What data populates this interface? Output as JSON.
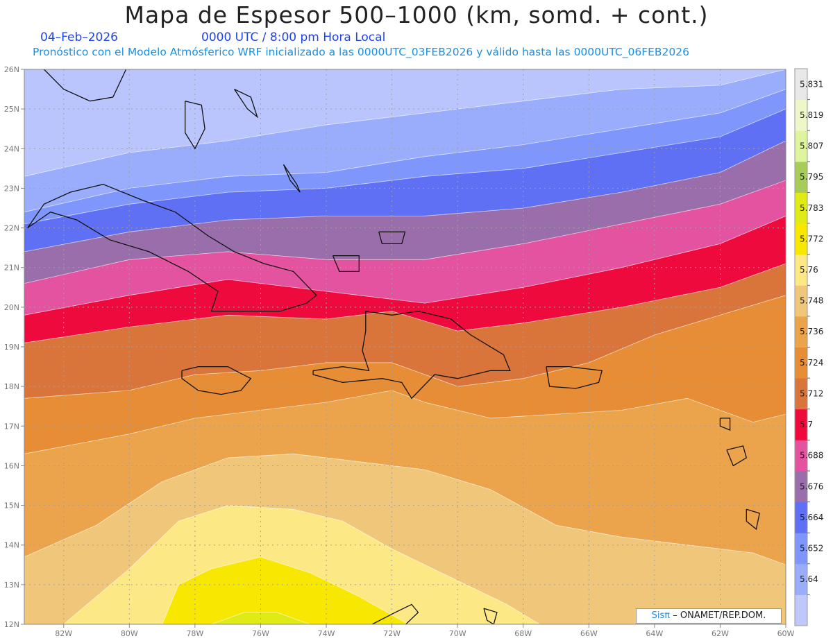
{
  "header": {
    "title": "Mapa de Espesor 500–1000 (km, somd. + cont.)",
    "date": "04–Feb–2026",
    "time": "0000 UTC / 8:00 pm Hora Local",
    "model_line": "Pronóstico con el Modelo Atmósferico WRF inicializado a las 0000UTC_03FEB2026 y válido hasta las  0000UTC_06FEB2026"
  },
  "credit": {
    "brand": "Sisπ",
    "text": "– ONAMET/REP.DOM."
  },
  "map": {
    "lon_range": [
      -83.2,
      -60
    ],
    "lat_range": [
      12,
      26
    ],
    "lon_ticks": [
      "82W",
      "80W",
      "78W",
      "76W",
      "74W",
      "72W",
      "70W",
      "68W",
      "66W",
      "64W",
      "62W",
      "60W"
    ],
    "lat_ticks": [
      "12N",
      "13N",
      "14N",
      "15N",
      "16N",
      "17N",
      "18N",
      "19N",
      "20N",
      "21N",
      "22N",
      "23N",
      "24N",
      "25N",
      "26N"
    ],
    "grid": true
  },
  "colorbar": {
    "labels": [
      "5.64",
      "5.652",
      "5.664",
      "5.676",
      "5.688",
      "5.7",
      "5.712",
      "5.724",
      "5.736",
      "5.748",
      "5.76",
      "5.772",
      "5.783",
      "5.795",
      "5.807",
      "5.819",
      "5.831"
    ],
    "colors": [
      "#c0c8fb",
      "#9aadfd",
      "#7f96fc",
      "#6070f4",
      "#9a6eaa",
      "#e453a0",
      "#ef0a3e",
      "#d9743a",
      "#e68d36",
      "#eba44b",
      "#f0c77a",
      "#fce884",
      "#f8e700",
      "#e0ea14",
      "#a8cc58",
      "#def59e",
      "#eef7c9",
      "#e8e8e8"
    ]
  },
  "bands": [
    {
      "color": "#b9c5fc",
      "top": [
        [
          -83.2,
          26
        ],
        [
          -60,
          26
        ]
      ]
    },
    {
      "color": "#9aadfd",
      "top": [
        [
          -83.2,
          23.3
        ],
        [
          -80,
          23.9
        ],
        [
          -77,
          24.2
        ],
        [
          -74,
          24.6
        ],
        [
          -71,
          24.9
        ],
        [
          -68,
          25.2
        ],
        [
          -65,
          25.5
        ],
        [
          -62,
          25.6
        ],
        [
          -60,
          26
        ]
      ]
    },
    {
      "color": "#7f96fc",
      "top": [
        [
          -83.2,
          22.4
        ],
        [
          -80,
          23.0
        ],
        [
          -77,
          23.3
        ],
        [
          -74,
          23.4
        ],
        [
          -71,
          23.8
        ],
        [
          -68,
          24.1
        ],
        [
          -65,
          24.5
        ],
        [
          -62,
          24.9
        ],
        [
          -60,
          25.5
        ]
      ]
    },
    {
      "color": "#6070f4",
      "top": [
        [
          -83.2,
          22.1
        ],
        [
          -80,
          22.6
        ],
        [
          -77,
          22.9
        ],
        [
          -74,
          23.0
        ],
        [
          -71,
          23.3
        ],
        [
          -68,
          23.5
        ],
        [
          -65,
          23.9
        ],
        [
          -62,
          24.3
        ],
        [
          -60,
          25.0
        ]
      ]
    },
    {
      "color": "#9a6eaa",
      "top": [
        [
          -83.2,
          21.4
        ],
        [
          -80,
          21.9
        ],
        [
          -77,
          22.2
        ],
        [
          -74,
          22.3
        ],
        [
          -71,
          22.3
        ],
        [
          -68,
          22.5
        ],
        [
          -65,
          22.9
        ],
        [
          -62,
          23.4
        ],
        [
          -60,
          24.2
        ]
      ]
    },
    {
      "color": "#e453a0",
      "top": [
        [
          -83.2,
          20.6
        ],
        [
          -80,
          21.2
        ],
        [
          -77,
          21.4
        ],
        [
          -74,
          21.2
        ],
        [
          -71,
          21.2
        ],
        [
          -68,
          21.6
        ],
        [
          -65,
          22.1
        ],
        [
          -62,
          22.6
        ],
        [
          -60,
          23.2
        ]
      ]
    },
    {
      "color": "#ef0a3e",
      "top": [
        [
          -83.2,
          19.8
        ],
        [
          -80,
          20.3
        ],
        [
          -77,
          20.7
        ],
        [
          -74,
          20.4
        ],
        [
          -71,
          20.1
        ],
        [
          -68,
          20.5
        ],
        [
          -65,
          21.0
        ],
        [
          -62,
          21.6
        ],
        [
          -60,
          22.3
        ]
      ]
    },
    {
      "color": "#d9743a",
      "top": [
        [
          -83.2,
          19.1
        ],
        [
          -80,
          19.5
        ],
        [
          -77,
          19.8
        ],
        [
          -74,
          19.7
        ],
        [
          -72,
          19.9
        ],
        [
          -70,
          19.4
        ],
        [
          -68,
          19.6
        ],
        [
          -65,
          20.0
        ],
        [
          -62,
          20.5
        ],
        [
          -60,
          21.1
        ]
      ]
    },
    {
      "color": "#e68d36",
      "top": [
        [
          -83.2,
          17.7
        ],
        [
          -80,
          17.9
        ],
        [
          -78,
          18.3
        ],
        [
          -76,
          18.4
        ],
        [
          -74,
          18.6
        ],
        [
          -72,
          18.6
        ],
        [
          -70,
          18.0
        ],
        [
          -68,
          18.2
        ],
        [
          -66,
          18.6
        ],
        [
          -64,
          19.3
        ],
        [
          -62,
          19.8
        ],
        [
          -60,
          20.3
        ]
      ]
    },
    {
      "color": "#eba44b",
      "top": [
        [
          -83.2,
          16.3
        ],
        [
          -80,
          16.8
        ],
        [
          -78,
          17.2
        ],
        [
          -76,
          17.4
        ],
        [
          -74,
          17.6
        ],
        [
          -72,
          17.9
        ],
        [
          -71,
          17.6
        ],
        [
          -69,
          17.2
        ],
        [
          -67,
          17.3
        ],
        [
          -65,
          17.4
        ],
        [
          -63,
          17.7
        ],
        [
          -61,
          17.1
        ],
        [
          -60,
          17.3
        ]
      ]
    },
    {
      "color": "#f0c77a",
      "top": [
        [
          -83.2,
          13.7
        ],
        [
          -81,
          14.5
        ],
        [
          -79,
          15.6
        ],
        [
          -77,
          16.2
        ],
        [
          -75,
          16.3
        ],
        [
          -73,
          16.1
        ],
        [
          -71,
          15.9
        ],
        [
          -69,
          15.4
        ],
        [
          -67,
          14.5
        ],
        [
          -65,
          14.2
        ],
        [
          -63,
          14.0
        ],
        [
          -61,
          13.8
        ],
        [
          -60,
          13.5
        ]
      ]
    },
    {
      "color": "#fce884",
      "top": [
        [
          -82,
          12.0
        ],
        [
          -80,
          13.4
        ],
        [
          -78.5,
          14.6
        ],
        [
          -77,
          15.0
        ],
        [
          -75,
          14.9
        ],
        [
          -73.5,
          14.6
        ],
        [
          -72,
          13.9
        ],
        [
          -70,
          13.1
        ],
        [
          -68.5,
          12.5
        ],
        [
          -67.5,
          12.0
        ]
      ]
    },
    {
      "color": "#f8e700",
      "top": [
        [
          -79,
          12.0
        ],
        [
          -78.5,
          13.0
        ],
        [
          -77.5,
          13.4
        ],
        [
          -76,
          13.7
        ],
        [
          -74.5,
          13.3
        ],
        [
          -73,
          12.7
        ],
        [
          -71.5,
          12.0
        ]
      ]
    },
    {
      "color": "#e0ea14",
      "top": [
        [
          -77.5,
          12.0
        ],
        [
          -76.5,
          12.3
        ],
        [
          -75.5,
          12.3
        ],
        [
          -74.5,
          12.0
        ]
      ]
    }
  ],
  "coastlines": [
    {
      "name": "cuba",
      "points": [
        [
          -83.1,
          22.0
        ],
        [
          -82.6,
          22.6
        ],
        [
          -81.8,
          22.9
        ],
        [
          -80.8,
          23.1
        ],
        [
          -79.6,
          22.7
        ],
        [
          -78.6,
          22.4
        ],
        [
          -77.6,
          21.8
        ],
        [
          -76.8,
          21.4
        ],
        [
          -75.9,
          21.1
        ],
        [
          -75.0,
          20.9
        ],
        [
          -74.3,
          20.3
        ],
        [
          -74.6,
          20.1
        ],
        [
          -75.4,
          19.9
        ],
        [
          -76.6,
          19.9
        ],
        [
          -77.5,
          19.9
        ],
        [
          -77.3,
          20.4
        ],
        [
          -78.2,
          20.9
        ],
        [
          -79.4,
          21.4
        ],
        [
          -80.6,
          21.7
        ],
        [
          -81.6,
          22.2
        ],
        [
          -82.4,
          22.4
        ],
        [
          -83.1,
          22.0
        ]
      ]
    },
    {
      "name": "hispaniola",
      "points": [
        [
          -74.4,
          18.4
        ],
        [
          -73.5,
          18.5
        ],
        [
          -72.7,
          18.4
        ],
        [
          -72.9,
          18.9
        ],
        [
          -72.8,
          19.4
        ],
        [
          -72.8,
          19.9
        ],
        [
          -72.0,
          19.8
        ],
        [
          -71.2,
          19.9
        ],
        [
          -70.2,
          19.7
        ],
        [
          -69.6,
          19.3
        ],
        [
          -68.6,
          18.8
        ],
        [
          -68.4,
          18.4
        ],
        [
          -69.0,
          18.4
        ],
        [
          -70.0,
          18.2
        ],
        [
          -70.7,
          18.3
        ],
        [
          -71.4,
          17.7
        ],
        [
          -71.7,
          18.1
        ],
        [
          -72.3,
          18.2
        ],
        [
          -73.5,
          18.1
        ],
        [
          -74.4,
          18.3
        ],
        [
          -74.4,
          18.4
        ]
      ]
    },
    {
      "name": "jamaica",
      "points": [
        [
          -78.4,
          18.4
        ],
        [
          -77.9,
          18.5
        ],
        [
          -77.0,
          18.5
        ],
        [
          -76.3,
          18.2
        ],
        [
          -76.6,
          17.9
        ],
        [
          -77.2,
          17.8
        ],
        [
          -77.9,
          17.9
        ],
        [
          -78.4,
          18.2
        ],
        [
          -78.4,
          18.4
        ]
      ]
    },
    {
      "name": "puerto-rico",
      "points": [
        [
          -67.3,
          18.5
        ],
        [
          -66.6,
          18.5
        ],
        [
          -65.6,
          18.4
        ],
        [
          -65.7,
          18.1
        ],
        [
          -66.4,
          17.95
        ],
        [
          -67.2,
          18.0
        ],
        [
          -67.3,
          18.5
        ]
      ]
    },
    {
      "name": "florida",
      "points": [
        [
          -82.6,
          26.0
        ],
        [
          -82.0,
          25.5
        ],
        [
          -81.2,
          25.2
        ],
        [
          -80.5,
          25.3
        ],
        [
          -80.1,
          26.0
        ]
      ]
    },
    {
      "name": "andros",
      "points": [
        [
          -78.3,
          25.2
        ],
        [
          -77.8,
          25.1
        ],
        [
          -77.7,
          24.5
        ],
        [
          -78.0,
          24.0
        ],
        [
          -78.3,
          24.4
        ],
        [
          -78.3,
          25.2
        ]
      ]
    },
    {
      "name": "eleuthera",
      "points": [
        [
          -76.8,
          25.5
        ],
        [
          -76.3,
          25.3
        ],
        [
          -76.1,
          24.8
        ],
        [
          -76.4,
          25.0
        ],
        [
          -76.8,
          25.5
        ]
      ]
    },
    {
      "name": "great-inagua",
      "points": [
        [
          -73.8,
          21.3
        ],
        [
          -73.0,
          21.3
        ],
        [
          -73.0,
          20.9
        ],
        [
          -73.6,
          20.9
        ],
        [
          -73.8,
          21.3
        ]
      ]
    },
    {
      "name": "caicos",
      "points": [
        [
          -72.4,
          21.9
        ],
        [
          -71.6,
          21.9
        ],
        [
          -71.7,
          21.6
        ],
        [
          -72.3,
          21.6
        ],
        [
          -72.4,
          21.9
        ]
      ]
    },
    {
      "name": "long-island",
      "points": [
        [
          -75.3,
          23.6
        ],
        [
          -74.9,
          23.1
        ],
        [
          -74.8,
          22.9
        ],
        [
          -75.1,
          23.2
        ],
        [
          -75.3,
          23.6
        ]
      ]
    },
    {
      "name": "guadeloupe",
      "points": [
        [
          -61.8,
          16.4
        ],
        [
          -61.3,
          16.5
        ],
        [
          -61.2,
          16.2
        ],
        [
          -61.6,
          16.0
        ],
        [
          -61.8,
          16.4
        ]
      ]
    },
    {
      "name": "martinique",
      "points": [
        [
          -61.2,
          14.9
        ],
        [
          -60.8,
          14.8
        ],
        [
          -60.9,
          14.4
        ],
        [
          -61.2,
          14.6
        ],
        [
          -61.2,
          14.9
        ]
      ]
    },
    {
      "name": "antigua",
      "points": [
        [
          -62.0,
          17.2
        ],
        [
          -61.7,
          17.2
        ],
        [
          -61.7,
          16.9
        ],
        [
          -62.0,
          17.0
        ],
        [
          -62.0,
          17.2
        ]
      ]
    },
    {
      "name": "curacao",
      "points": [
        [
          -69.2,
          12.4
        ],
        [
          -68.8,
          12.3
        ],
        [
          -68.9,
          12.0
        ],
        [
          -69.1,
          12.1
        ],
        [
          -69.2,
          12.4
        ]
      ]
    },
    {
      "name": "guajira",
      "points": [
        [
          -72.6,
          12.0
        ],
        [
          -71.9,
          12.3
        ],
        [
          -71.4,
          12.5
        ],
        [
          -71.2,
          12.3
        ],
        [
          -71.7,
          11.9
        ]
      ]
    }
  ]
}
